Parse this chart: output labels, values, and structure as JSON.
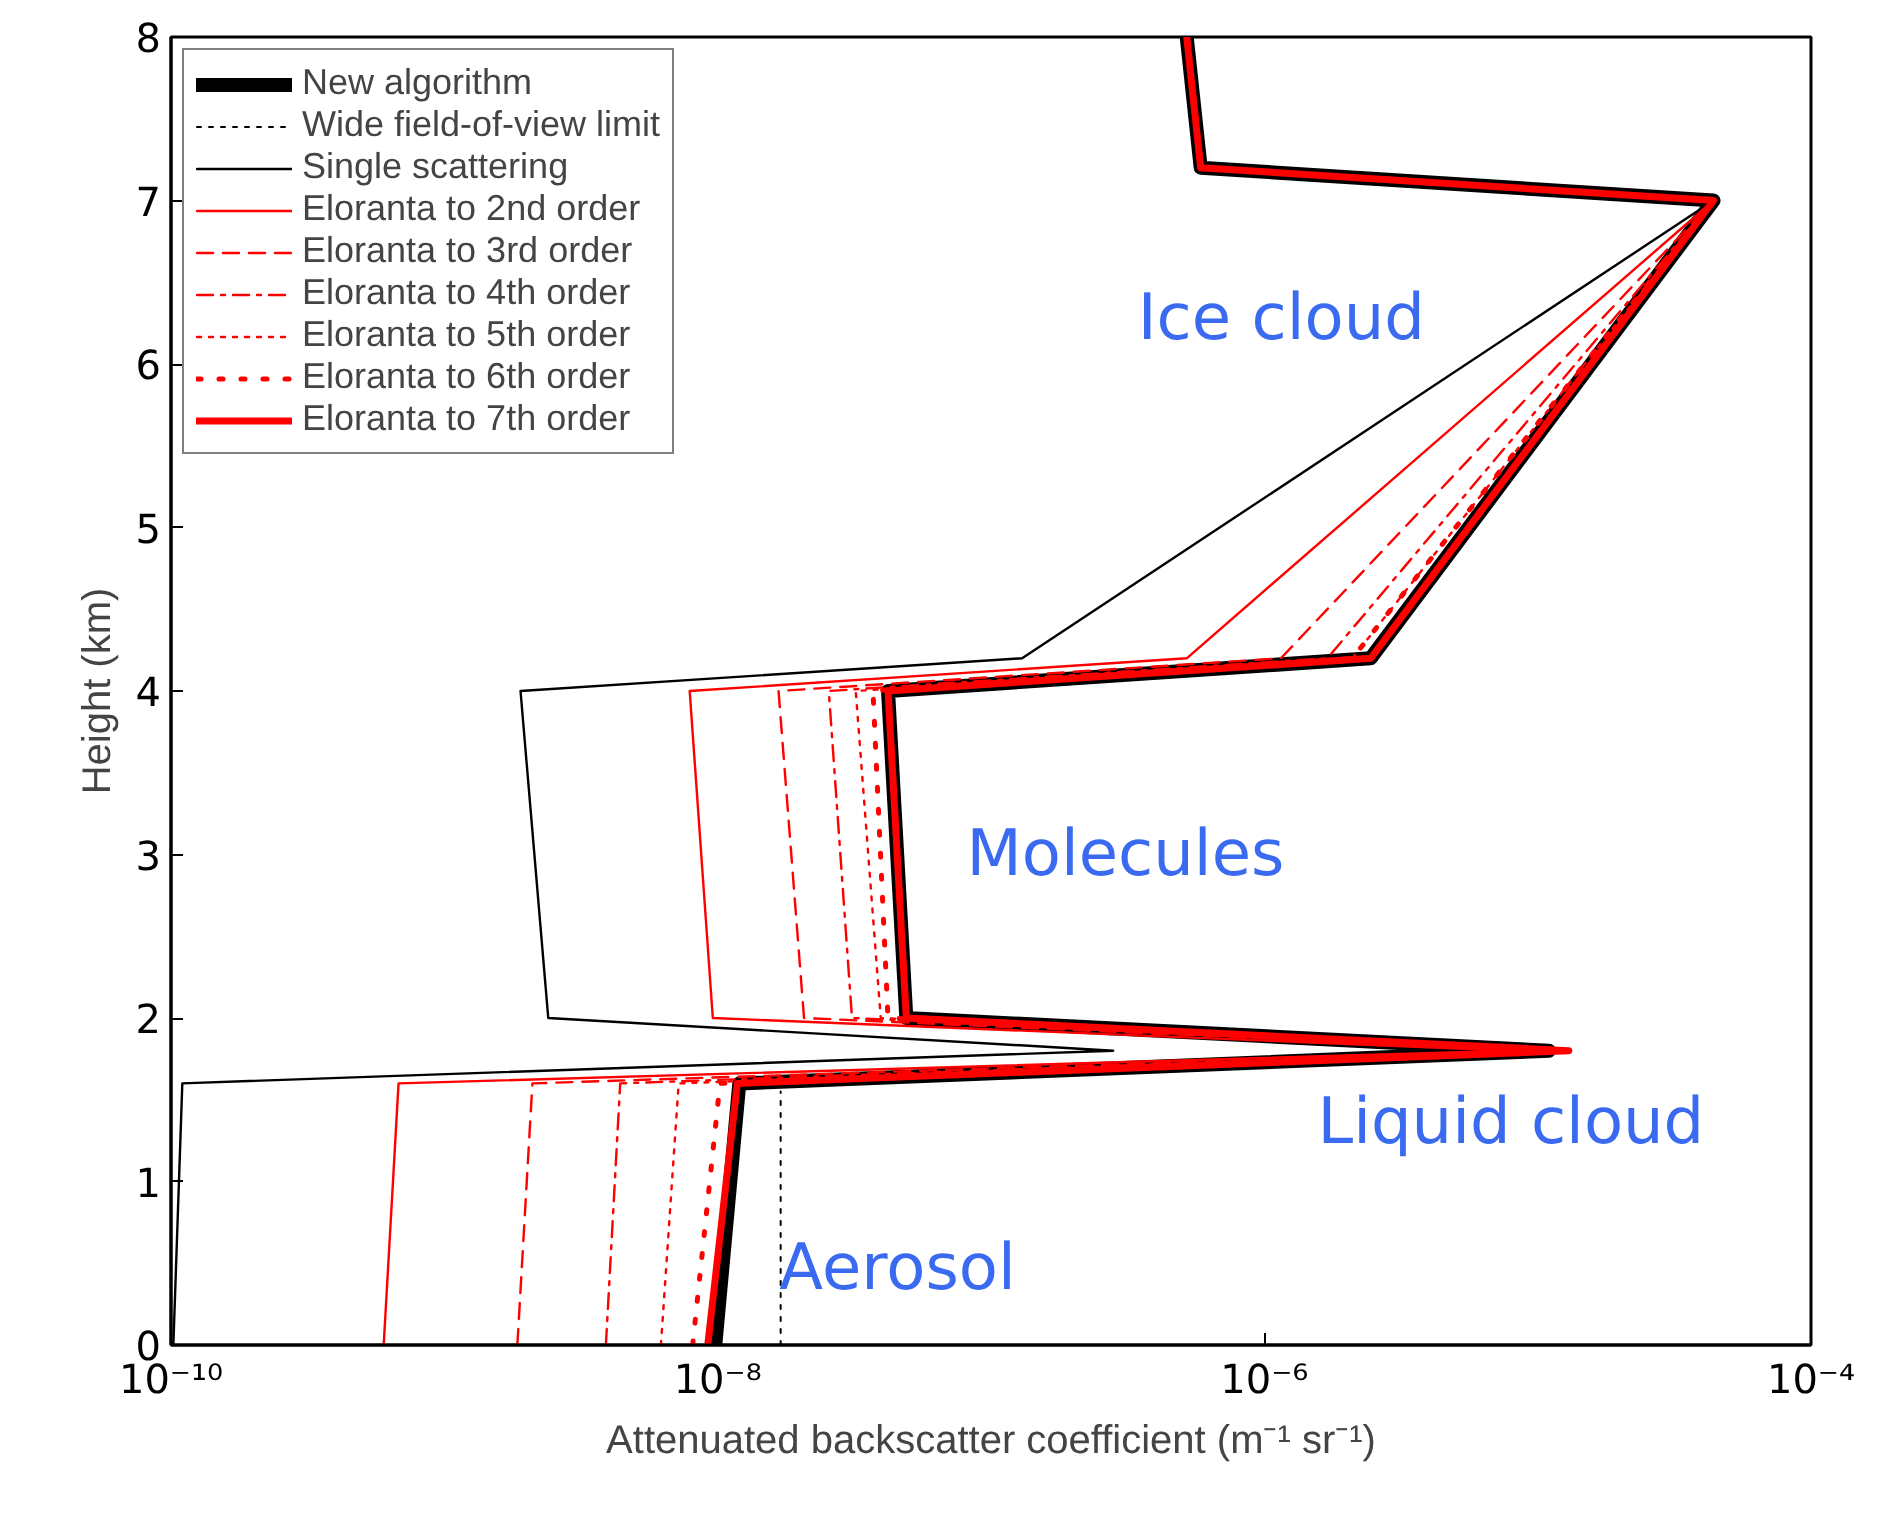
{
  "chart_data": {
    "type": "line",
    "xlabel": "Attenuated backscatter coefficient (m⁻¹ sr⁻¹)",
    "ylabel": "Height (km)",
    "log": "x",
    "xlim": [
      1e-10,
      0.0001
    ],
    "ylim": [
      0,
      8
    ],
    "xticks": [
      {
        "value": 1e-10,
        "label": "10⁻¹⁰"
      },
      {
        "value": 1e-08,
        "label": "10⁻⁸"
      },
      {
        "value": 1e-06,
        "label": "10⁻⁶"
      },
      {
        "value": 0.0001,
        "label": "10⁻⁴"
      }
    ],
    "yticks": [
      0,
      1,
      2,
      3,
      4,
      5,
      6,
      7,
      8
    ],
    "grid": false,
    "legend": "top left",
    "marker": "none",
    "series": [
      {
        "name": "New algorithm",
        "color": "#000000",
        "line_style": "solid",
        "x": [
          9.8e-09,
          1.2e-08,
          1.1e-05,
          4.9e-08,
          4.2e-08,
          2.45e-06,
          4.4e-05,
          5.85e-07,
          5.2e-07
        ],
        "values": [
          0,
          1.6,
          1.8,
          2.0,
          4.0,
          4.2,
          7.0,
          7.2,
          8.0
        ]
      },
      {
        "name": "Wide field-of-view limit",
        "color": "#000000",
        "line_style": "dotted",
        "x": [
          1.7e-08,
          1.7e-08
        ],
        "values": [
          0,
          1.55
        ]
      },
      {
        "name": "Single scattering",
        "color": "#000000",
        "line_style": "solid",
        "x": [
          1.02e-10,
          1.1e-10,
          2.8e-07,
          2.4e-09,
          1.9e-09,
          1.3e-07,
          4.4e-05,
          5.85e-07,
          5.2e-07
        ],
        "values": [
          0,
          1.6,
          1.8,
          2.0,
          4.0,
          4.2,
          7.0,
          7.2,
          8.0
        ]
      },
      {
        "name": "Eloranta to 2nd order",
        "color": "#ff0000",
        "line_style": "solid",
        "x": [
          6e-10,
          6.8e-10,
          8e-06,
          9.6e-09,
          7.9e-09,
          5.2e-07,
          4.4e-05,
          5.85e-07,
          5.2e-07
        ],
        "values": [
          0,
          1.6,
          1.8,
          2.0,
          4.0,
          4.2,
          7.0,
          7.2,
          8.0
        ]
      },
      {
        "name": "Eloranta to 3rd order",
        "color": "#ff0000",
        "line_style": "dashed",
        "x": [
          1.85e-09,
          2.1e-09,
          1e-05,
          2.07e-08,
          1.67e-08,
          1.15e-06,
          4.4e-05,
          5.85e-07,
          5.2e-07
        ],
        "values": [
          0,
          1.6,
          1.8,
          2.0,
          4.0,
          4.2,
          7.0,
          7.2,
          8.0
        ]
      },
      {
        "name": "Eloranta to 4th order",
        "color": "#ff0000",
        "line_style": "dashdot",
        "x": [
          3.9e-09,
          4.4e-09,
          1e-05,
          3.1e-08,
          2.55e-08,
          1.7e-06,
          4.4e-05,
          5.85e-07,
          5.2e-07
        ],
        "values": [
          0,
          1.6,
          1.8,
          2.0,
          4.0,
          4.2,
          7.0,
          7.2,
          8.0
        ]
      },
      {
        "name": "Eloranta to 5th order",
        "color": "#ff0000",
        "line_style": "dotted",
        "x": [
          6.2e-09,
          7.2e-09,
          1.1e-05,
          3.95e-08,
          3.2e-08,
          2.1e-06,
          4.4e-05,
          5.85e-07,
          5.2e-07
        ],
        "values": [
          0,
          1.6,
          1.8,
          2.0,
          4.0,
          4.2,
          7.0,
          7.2,
          8.0
        ]
      },
      {
        "name": "Eloranta to 6th order",
        "color": "#ff0000",
        "line_style": "dots",
        "x": [
          8.1e-09,
          1.02e-08,
          1.2e-05,
          4.2e-08,
          3.7e-08,
          2.1e-06,
          4.4e-05,
          5.85e-07,
          5.2e-07
        ],
        "values": [
          0,
          1.6,
          1.8,
          2.0,
          4.0,
          4.2,
          7.0,
          7.2,
          8.0
        ]
      },
      {
        "name": "Eloranta to 7th order",
        "color": "#ff0000",
        "line_style": "solid",
        "x": [
          9.2e-09,
          1.18e-08,
          1.3e-05,
          4.9e-08,
          4.2e-08,
          2.45e-06,
          4.4e-05,
          5.85e-07,
          5.2e-07
        ],
        "values": [
          0,
          1.6,
          1.8,
          2.0,
          4.0,
          4.2,
          7.0,
          7.2,
          8.0
        ]
      }
    ],
    "annotations": [
      "Ice cloud",
      "Molecules",
      "Liquid cloud",
      "Aerosol"
    ]
  }
}
